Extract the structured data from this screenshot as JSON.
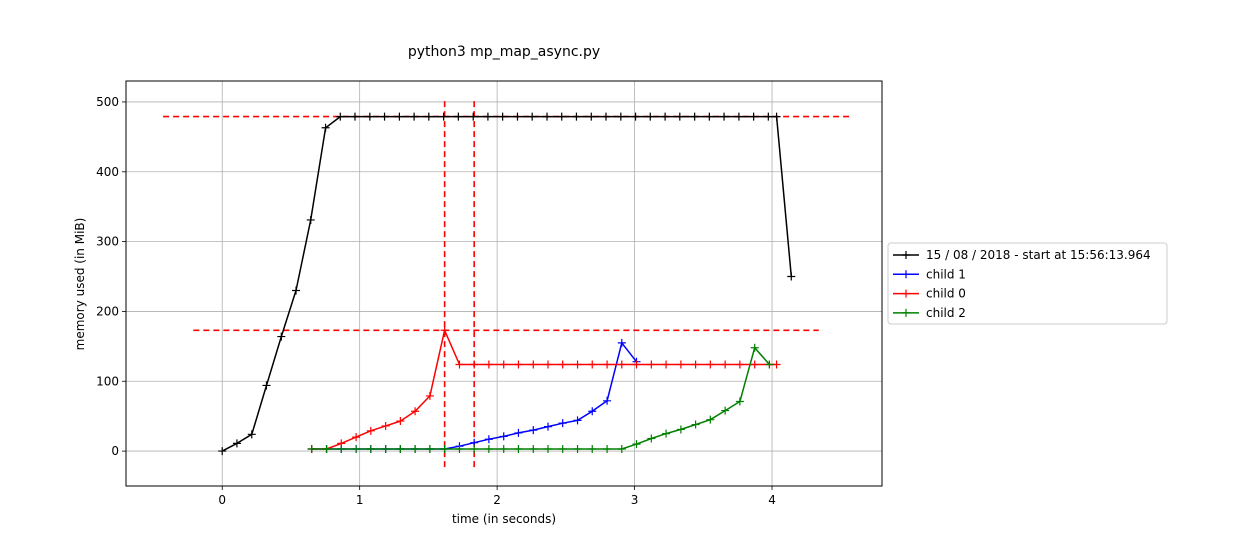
{
  "chart_data": {
    "type": "line",
    "title": "python3 mp_map_async.py",
    "xlabel": "time (in seconds)",
    "ylabel": "memory used (in MiB)",
    "xlim": [
      -0.7,
      4.8
    ],
    "ylim": [
      -50,
      530
    ],
    "xticks": [
      0,
      1,
      2,
      3,
      4
    ],
    "yticks": [
      0,
      100,
      200,
      300,
      400,
      500
    ],
    "grid": true,
    "legend_position": "outside-right",
    "series": [
      {
        "name": "15 / 08 / 2018 - start at 15:56:13.964",
        "color": "#000000",
        "x": [
          0,
          0.107,
          0.215,
          0.322,
          0.43,
          0.537,
          0.644,
          0.752,
          0.859,
          0.966,
          1.074,
          1.181,
          1.289,
          1.396,
          1.503,
          1.611,
          1.718,
          1.826,
          1.933,
          2.04,
          2.148,
          2.255,
          2.363,
          2.47,
          2.577,
          2.685,
          2.792,
          2.9,
          3.007,
          3.114,
          3.222,
          3.329,
          3.437,
          3.544,
          3.651,
          3.759,
          3.866,
          3.973,
          4.033,
          4.14
        ],
        "y": [
          0,
          11,
          24,
          94,
          164,
          230,
          331,
          463,
          479,
          479,
          479,
          479,
          479,
          479,
          479,
          479,
          479,
          479,
          479,
          479,
          479,
          479,
          479,
          479,
          479,
          479,
          479,
          479,
          479,
          479,
          479,
          479,
          479,
          479,
          479,
          479,
          479,
          479,
          479,
          250
        ]
      },
      {
        "name": "child 1",
        "color": "#0000ff",
        "x": [
          0.651,
          0.759,
          0.866,
          0.974,
          1.081,
          1.189,
          1.296,
          1.403,
          1.511,
          1.618,
          1.726,
          1.833,
          1.94,
          2.048,
          2.155,
          2.263,
          2.37,
          2.477,
          2.585,
          2.692,
          2.8,
          2.907,
          3.014
        ],
        "y": [
          3,
          3,
          3,
          3,
          3,
          3,
          3,
          3,
          3,
          3,
          7,
          12,
          17,
          21,
          26,
          30,
          35,
          40,
          44,
          57,
          72,
          155,
          128
        ]
      },
      {
        "name": "child 0",
        "color": "#ff0000",
        "x": [
          0.651,
          0.759,
          0.866,
          0.974,
          1.081,
          1.189,
          1.296,
          1.403,
          1.511,
          1.618,
          1.726,
          1.833,
          1.94,
          2.048,
          2.155,
          2.263,
          2.37,
          2.477,
          2.585,
          2.692,
          2.8,
          2.907,
          3.014,
          3.122,
          3.229,
          3.337,
          3.444,
          3.551,
          3.659,
          3.766,
          3.874,
          3.981,
          4.033
        ],
        "y": [
          3,
          3,
          11,
          20,
          29,
          36,
          43,
          57,
          79,
          173,
          124,
          124,
          124,
          124,
          124,
          124,
          124,
          124,
          124,
          124,
          124,
          124,
          124,
          124,
          124,
          124,
          124,
          124,
          124,
          124,
          124,
          124,
          124
        ]
      },
      {
        "name": "child 2",
        "color": "#008000",
        "x": [
          0.651,
          0.759,
          0.866,
          0.974,
          1.081,
          1.189,
          1.296,
          1.403,
          1.511,
          1.618,
          1.726,
          1.833,
          1.94,
          2.048,
          2.155,
          2.263,
          2.37,
          2.477,
          2.585,
          2.692,
          2.8,
          2.907,
          3.014,
          3.122,
          3.229,
          3.337,
          3.444,
          3.551,
          3.659,
          3.766,
          3.874,
          3.981
        ],
        "y": [
          3,
          3,
          3,
          3,
          3,
          3,
          3,
          3,
          3,
          3,
          3,
          3,
          3,
          3,
          3,
          3,
          3,
          3,
          3,
          3,
          3,
          3,
          10,
          18,
          25,
          31,
          38,
          45,
          58,
          71,
          148,
          124
        ]
      }
    ],
    "reference_lines": [
      {
        "orientation": "horizontal",
        "y": 479,
        "x_range": [
          -0.43,
          4.57
        ],
        "color": "#ff0000",
        "style": "dashed"
      },
      {
        "orientation": "horizontal",
        "y": 173,
        "x_range": [
          -0.21,
          4.34
        ],
        "color": "#ff0000",
        "style": "dashed"
      },
      {
        "orientation": "vertical",
        "x": 1.618,
        "y_range": [
          -23,
          503
        ],
        "color": "#ff0000",
        "style": "dashed"
      },
      {
        "orientation": "vertical",
        "x": 1.833,
        "y_range": [
          -23,
          503
        ],
        "color": "#ff0000",
        "style": "dashed"
      }
    ]
  }
}
